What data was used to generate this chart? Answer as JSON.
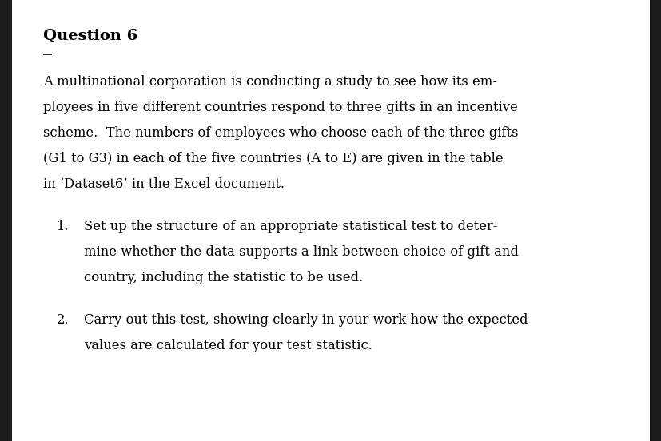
{
  "title": "Question 6",
  "background_color": "#ffffff",
  "left_border_color": "#1a1a1a",
  "right_border_color": "#1a1a1a",
  "text_color": "#000000",
  "intro_lines": [
    "A multinational corporation is conducting a study to see how its em-",
    "ployees in five different countries respond to three gifts in an incentive",
    "scheme.  The numbers of employees who choose each of the three gifts",
    "(G1 to G3) in each of the five countries (A to E) are given in the table",
    "in ‘Dataset6’ in the Excel document."
  ],
  "item1_number": "1.",
  "item1_lines": [
    "Set up the structure of an appropriate statistical test to deter-",
    "mine whether the data supports a link between choice of gift and",
    "country, including the statistic to be used."
  ],
  "item2_number": "2.",
  "item2_lines": [
    "Carry out this test, showing clearly in your work how the expected",
    "values are calculated for your test statistic."
  ],
  "title_fontsize": 14,
  "body_fontsize": 11.8,
  "font_family": "DejaVu Serif"
}
